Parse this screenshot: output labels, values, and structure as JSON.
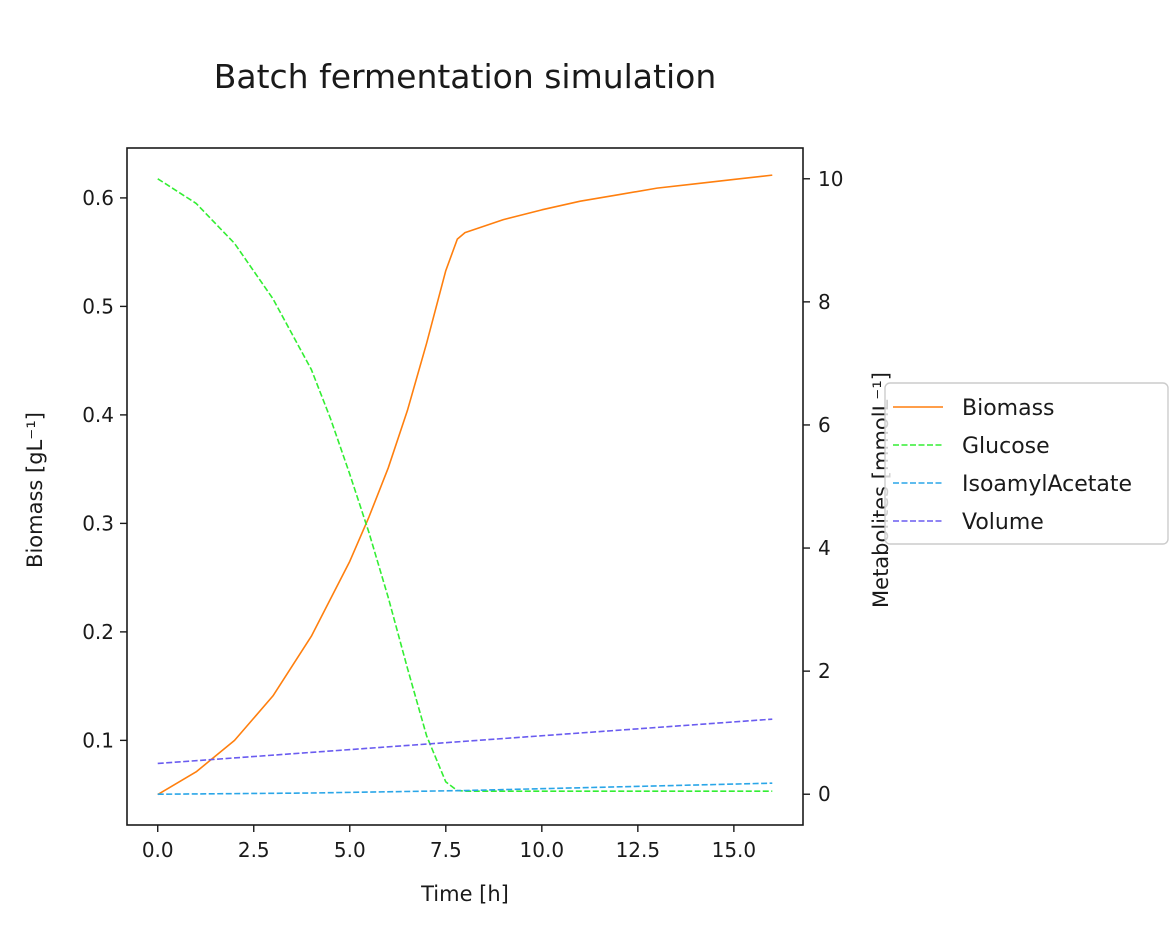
{
  "chart_data": {
    "type": "line",
    "title": "Batch fermentation simulation",
    "xlabel": "Time [h]",
    "ylabel_left": "Biomass [gL⁻¹]",
    "ylabel_right": "Metabolites [mmolL⁻¹]",
    "xlim": [
      -0.8,
      16.8
    ],
    "ylim_left": [
      0.022,
      0.646
    ],
    "ylim_right": [
      -0.5,
      10.5
    ],
    "xticks": [
      0.0,
      2.5,
      5.0,
      7.5,
      10.0,
      12.5,
      15.0
    ],
    "xtick_labels": [
      "0.0",
      "2.5",
      "5.0",
      "7.5",
      "10.0",
      "12.5",
      "15.0"
    ],
    "yticks_left": [
      0.1,
      0.2,
      0.3,
      0.4,
      0.5,
      0.6
    ],
    "ytick_labels_left": [
      "0.1",
      "0.2",
      "0.3",
      "0.4",
      "0.5",
      "0.6"
    ],
    "yticks_right": [
      0,
      2,
      4,
      6,
      8,
      10
    ],
    "ytick_labels_right": [
      "0",
      "2",
      "4",
      "6",
      "8",
      "10"
    ],
    "grid": false,
    "legend_position": "right, outside plot",
    "series": [
      {
        "name": "Biomass",
        "axis": "left",
        "color": "#ff7f0e",
        "dash": "solid",
        "x": [
          0,
          1,
          2,
          3,
          4,
          5,
          5.5,
          6,
          6.5,
          7,
          7.5,
          7.8,
          8,
          9,
          10,
          11,
          12,
          13,
          14,
          15,
          16
        ],
        "y": [
          0.05,
          0.071,
          0.1,
          0.141,
          0.196,
          0.265,
          0.306,
          0.351,
          0.404,
          0.466,
          0.533,
          0.562,
          0.568,
          0.58,
          0.589,
          0.597,
          0.603,
          0.609,
          0.613,
          0.617,
          0.621
        ]
      },
      {
        "name": "Glucose",
        "axis": "right",
        "color": "#33ee33",
        "dash": "dashed",
        "x": [
          0,
          1,
          2,
          3,
          4,
          4.5,
          5,
          5.5,
          6,
          6.5,
          7,
          7.5,
          7.8,
          8,
          10,
          12,
          14,
          16
        ],
        "y": [
          10.0,
          9.6,
          8.95,
          8.05,
          6.9,
          6.1,
          5.2,
          4.25,
          3.2,
          2.05,
          0.95,
          0.2,
          0.06,
          0.05,
          0.05,
          0.05,
          0.05,
          0.05
        ]
      },
      {
        "name": "IsoamylAcetate",
        "axis": "right",
        "color": "#2aa6e8",
        "dash": "dashed",
        "x": [
          0,
          4,
          8,
          12,
          16
        ],
        "y": [
          0.0,
          0.02,
          0.06,
          0.12,
          0.18
        ]
      },
      {
        "name": "Volume",
        "axis": "right",
        "color": "#6a5cf0",
        "dash": "dashed",
        "x": [
          0,
          16
        ],
        "y": [
          0.5,
          1.22
        ]
      }
    ]
  }
}
